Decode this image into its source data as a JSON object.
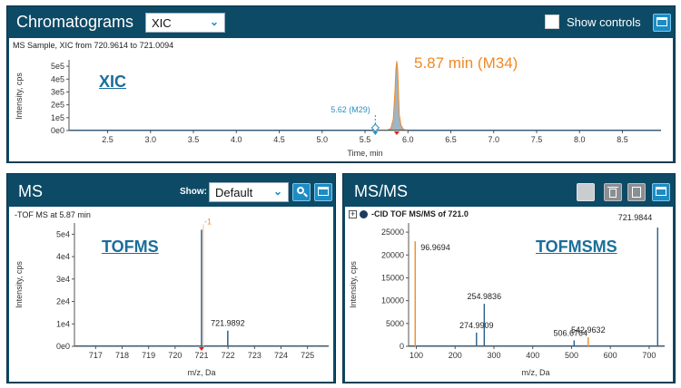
{
  "chromatograms": {
    "title": "Chromatograms",
    "trace_select": "XIC",
    "show_controls_label": "Show controls",
    "sample_caption": "MS Sample, XIC from 720.9614 to 721.0094",
    "tag": "XIC",
    "peak_label": "5.87 min (M34)",
    "marker_label": "5.62 (M29)"
  },
  "ms": {
    "title": "MS",
    "show_label": "Show:",
    "show_select": "Default",
    "caption": "-TOF MS at 5.87 min",
    "tag": "TOFMS",
    "peak_label": "721.9892",
    "annot": "-1"
  },
  "msms": {
    "title": "MS/MS",
    "caption": "-CID TOF MS/MS of 721.0",
    "tag": "TOFMSMS",
    "peak_labels": [
      "96.9694",
      "274.9909",
      "254.9836",
      "506.6764",
      "542.9632",
      "721.9844"
    ]
  },
  "colors": {
    "panel": "#0d4a66",
    "accent": "#1d8cc4",
    "peak": "#f08a24",
    "trace": "#2b5f87",
    "marker": "#e02020"
  },
  "chart_data": [
    {
      "type": "area",
      "xlabel": "Time, min",
      "ylabel": "Intensity, cps",
      "xlim": [
        2.05,
        8.95
      ],
      "ylim": [
        0,
        550000
      ],
      "xticks": [
        "2.5",
        "3.0",
        "3.5",
        "4.0",
        "4.5",
        "5.0",
        "5.5",
        "6.0",
        "6.5",
        "7.0",
        "7.5",
        "8.0",
        "8.5"
      ],
      "yticks": [
        "0e0",
        "1e5",
        "2e5",
        "3e5",
        "4e5",
        "5e5"
      ],
      "x": [
        5.6,
        5.75,
        5.8,
        5.83,
        5.85,
        5.86,
        5.87,
        5.88,
        5.89,
        5.9,
        5.92,
        5.95,
        6.0
      ],
      "y": [
        0,
        1000,
        15000,
        90000,
        320000,
        480000,
        540000,
        480000,
        300000,
        120000,
        40000,
        8000,
        0
      ],
      "markers": [
        5.62,
        5.87
      ]
    },
    {
      "type": "bar",
      "xlabel": "m/z, Da",
      "ylabel": "Intensity, cps",
      "xlim": [
        716.2,
        725.8
      ],
      "ylim": [
        0,
        55000
      ],
      "xticks": [
        "717",
        "718",
        "719",
        "720",
        "721",
        "722",
        "723",
        "724",
        "725"
      ],
      "yticks": [
        "0e0",
        "1e4",
        "2e4",
        "3e4",
        "4e4",
        "5e4"
      ],
      "x": [
        721.0,
        721.9892
      ],
      "y": [
        52000,
        7000
      ]
    },
    {
      "type": "bar",
      "xlabel": "m/z, Da",
      "ylabel": "Intensity, cps",
      "xlim": [
        80,
        740
      ],
      "ylim": [
        0,
        27000
      ],
      "xticks": [
        "100",
        "200",
        "300",
        "400",
        "500",
        "600",
        "700"
      ],
      "yticks": [
        "0",
        "5000",
        "10000",
        "15000",
        "20000",
        "25000"
      ],
      "x": [
        96.9694,
        254.9836,
        274.9909,
        506.6764,
        542.9632,
        721.9844
      ],
      "y": [
        23000,
        3000,
        9300,
        1300,
        2000,
        26000
      ]
    }
  ]
}
